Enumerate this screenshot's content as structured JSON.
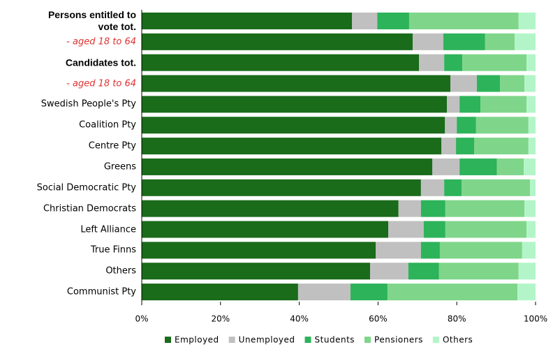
{
  "chart_data": {
    "type": "stacked-bar-horizontal",
    "categories": [
      "Persons entitled to vote tot.",
      "- aged 18 to 64",
      "Candidates tot.",
      "- aged 18 to 64",
      "Swedish People's Pty",
      "Coalition Pty",
      "Centre Pty",
      "Greens",
      "Social Democratic Pty",
      "Christian Democrats",
      "Left Alliance",
      "True Finns",
      "Others",
      "Communist Pty"
    ],
    "category_styles": [
      "bold",
      "italic-red",
      "bold",
      "italic-red",
      "normal",
      "normal",
      "normal",
      "normal",
      "normal",
      "normal",
      "normal",
      "normal",
      "normal",
      "normal"
    ],
    "series": [
      {
        "name": "Employed",
        "color": "#1a6b1a",
        "values": [
          53.4,
          68.8,
          70.4,
          78.4,
          77.5,
          77.0,
          76.1,
          73.8,
          70.9,
          65.2,
          62.6,
          59.4,
          58.0,
          39.7
        ]
      },
      {
        "name": "Unemployed",
        "color": "#c0c0c0",
        "values": [
          6.4,
          7.8,
          6.4,
          6.7,
          3.2,
          3.0,
          3.7,
          6.9,
          5.9,
          5.7,
          9.0,
          11.5,
          9.7,
          13.3
        ]
      },
      {
        "name": "Students",
        "color": "#2db35a",
        "values": [
          8.1,
          10.6,
          4.6,
          5.9,
          5.3,
          4.9,
          4.6,
          9.5,
          4.4,
          6.2,
          5.5,
          4.8,
          7.8,
          9.4
        ]
      },
      {
        "name": "Pensioners",
        "color": "#7fd68a",
        "values": [
          27.8,
          7.5,
          16.3,
          6.2,
          11.7,
          13.3,
          13.8,
          6.8,
          17.4,
          20.1,
          20.6,
          20.9,
          20.2,
          33.0
        ]
      },
      {
        "name": "Others",
        "color": "#b3f5c8",
        "values": [
          4.3,
          5.3,
          2.3,
          2.8,
          2.3,
          1.8,
          1.8,
          3.0,
          1.4,
          2.8,
          2.3,
          3.4,
          4.3,
          4.6
        ]
      }
    ],
    "xlim": [
      0,
      100
    ],
    "xticks": [
      {
        "value": 0,
        "label": "0%"
      },
      {
        "value": 20,
        "label": "20%"
      },
      {
        "value": 40,
        "label": "40%"
      },
      {
        "value": 60,
        "label": "60%"
      },
      {
        "value": 80,
        "label": "80%"
      },
      {
        "value": 100,
        "label": "100%"
      }
    ],
    "legend": "bottom"
  }
}
